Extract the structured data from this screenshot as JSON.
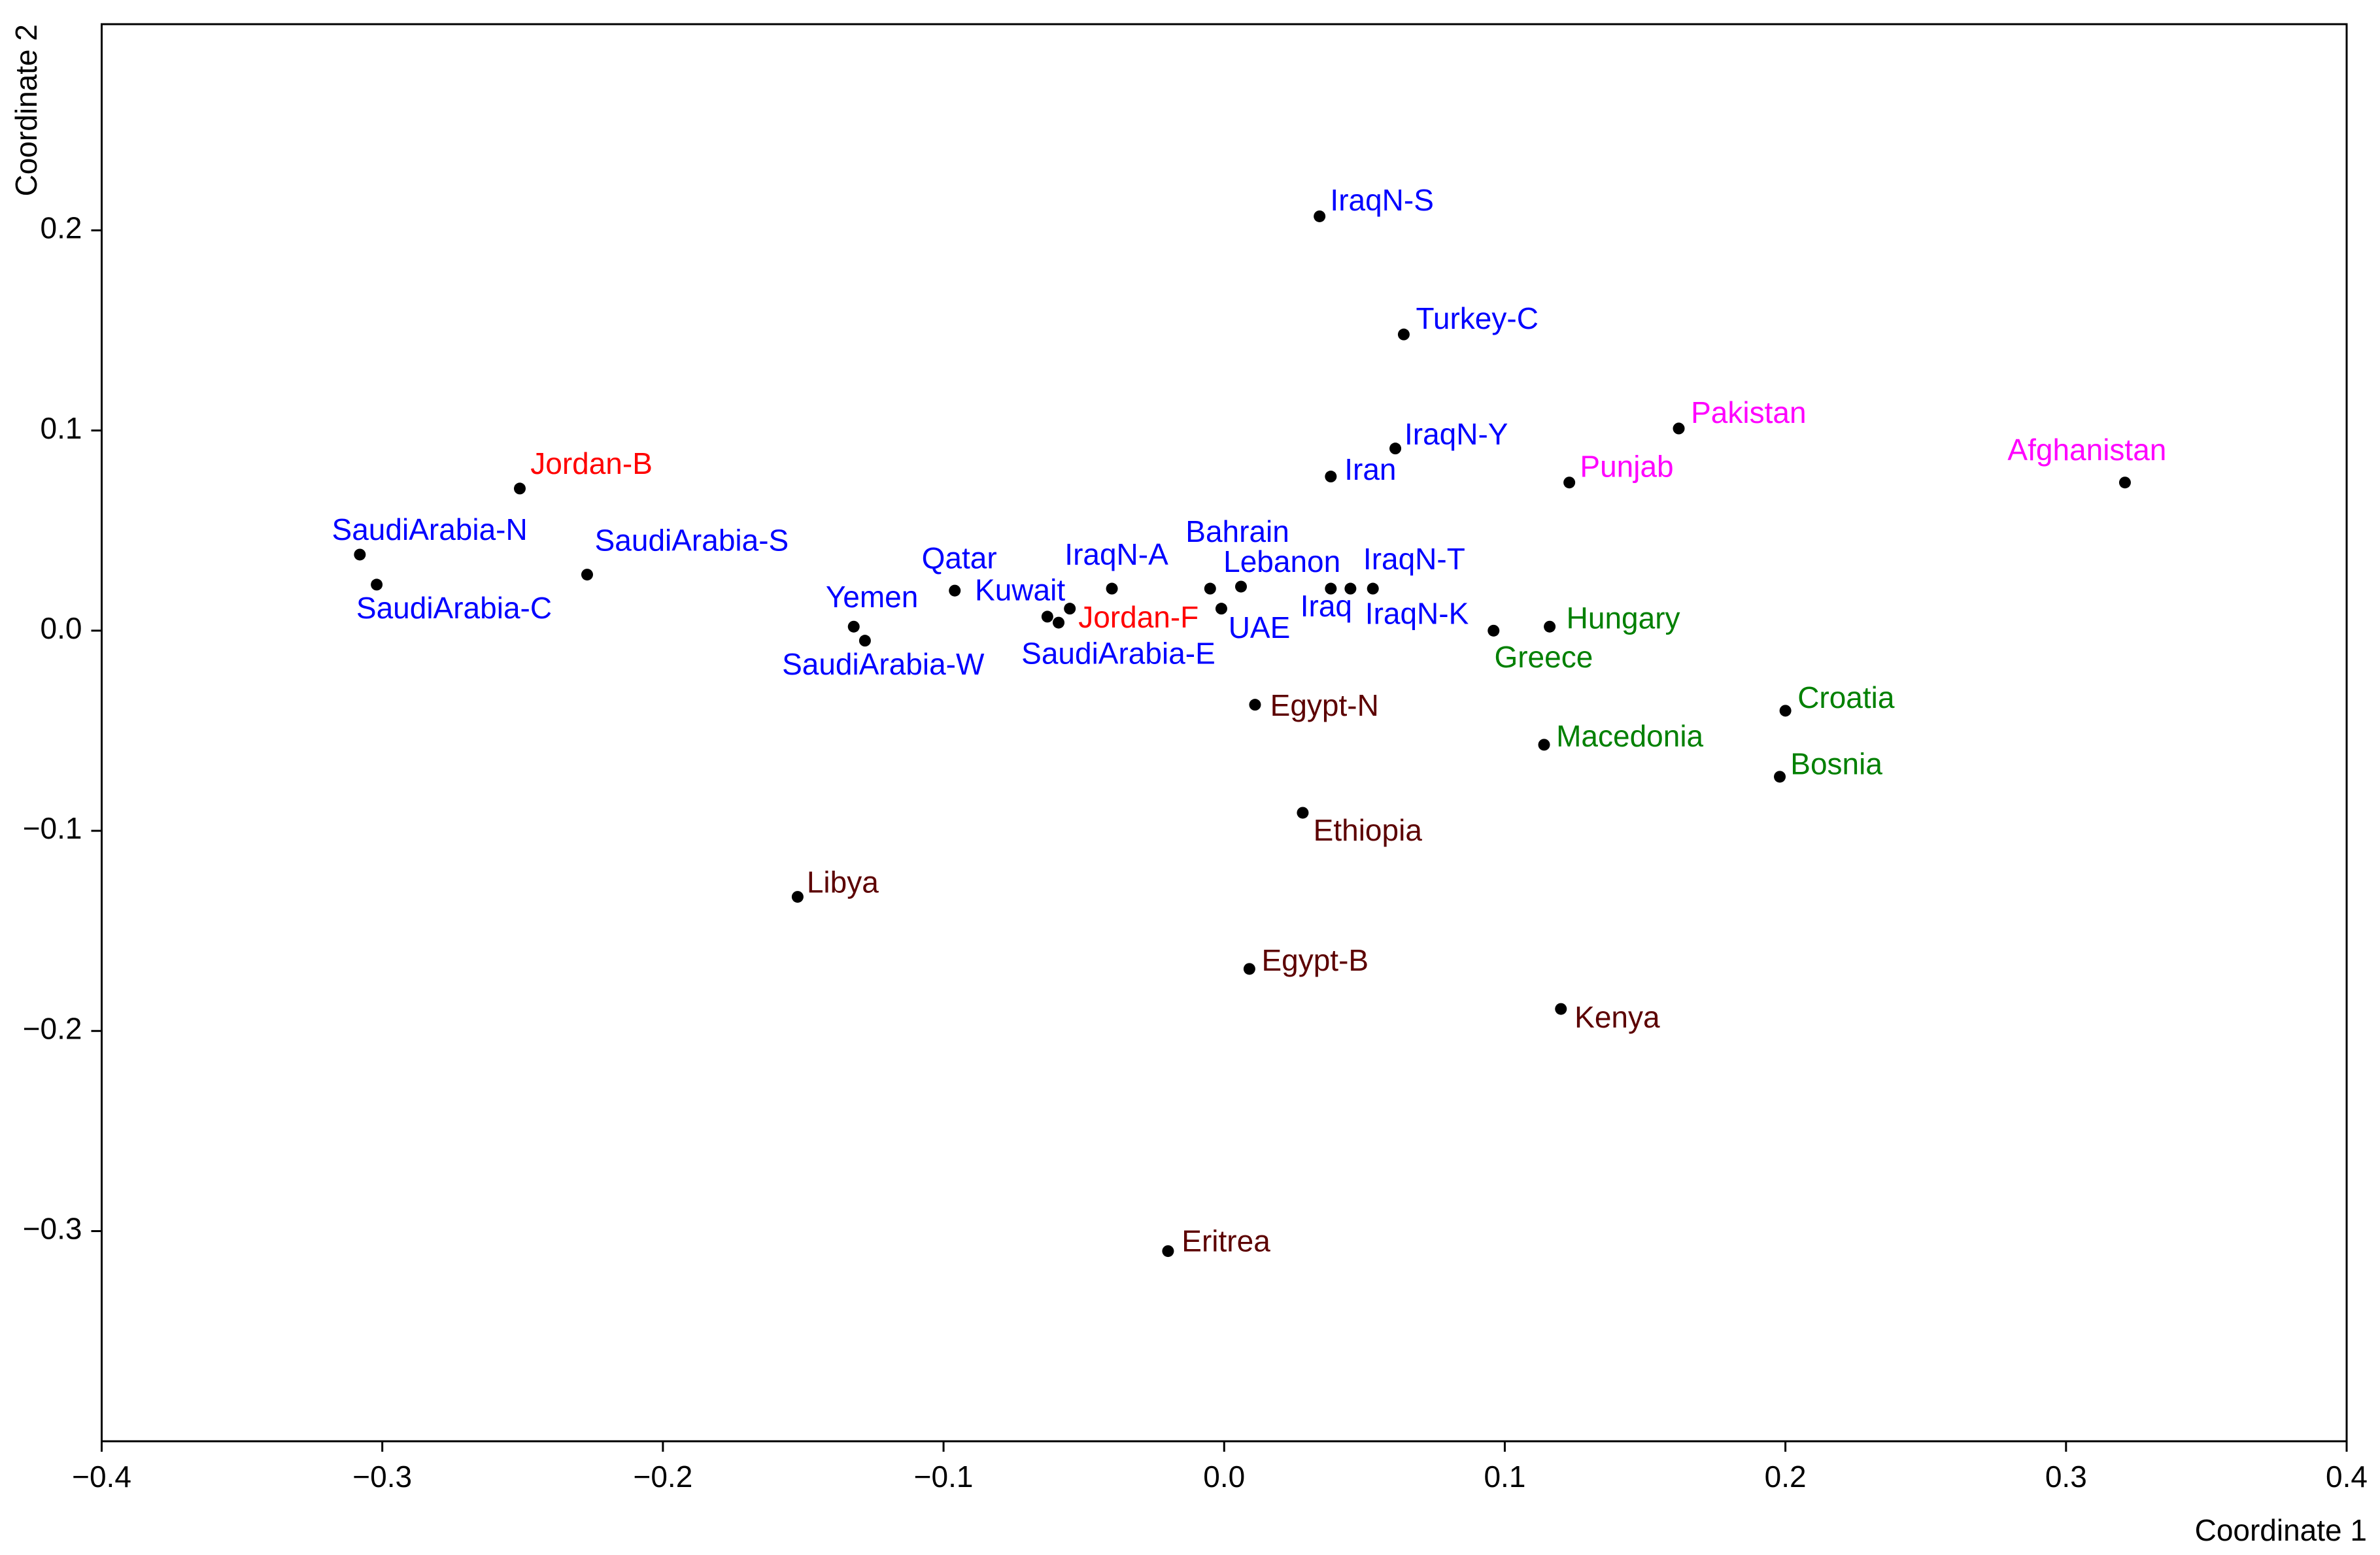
{
  "chart_data": {
    "type": "scatter",
    "x_label": "Coordinate 1",
    "y_label": "Coordinate 2",
    "xlim": [
      -0.4,
      0.4
    ],
    "ylim": [
      -0.405,
      0.303
    ],
    "xticks": [
      {
        "value": -0.4,
        "label": "−0.4"
      },
      {
        "value": -0.3,
        "label": "−0.3"
      },
      {
        "value": -0.2,
        "label": "−0.2"
      },
      {
        "value": -0.1,
        "label": "−0.1"
      },
      {
        "value": 0,
        "label": "0.0"
      },
      0.1,
      0.2,
      0.3,
      0.4
    ],
    "yticks": [
      {
        "value": -0.3,
        "label": "−0.3"
      },
      {
        "value": -0.2,
        "label": "−0.2"
      },
      {
        "value": -0.1,
        "label": "−0.1"
      },
      {
        "value": 0,
        "label": "0.0"
      },
      0.1,
      0.2
    ],
    "grid": false,
    "points": [
      {
        "label": "IraqN-S",
        "x": 0.034,
        "y": 0.207,
        "color": "#0000ff"
      },
      {
        "label": "Turkey-C",
        "x": 0.064,
        "y": 0.148,
        "color": "#0000ff"
      },
      {
        "label": "IraqN-Y",
        "x": 0.061,
        "y": 0.091,
        "color": "#0000ff"
      },
      {
        "label": "Iran",
        "x": 0.038,
        "y": 0.077,
        "color": "#0000ff"
      },
      {
        "label": "Pakistan",
        "x": 0.162,
        "y": 0.101,
        "color": "#ff00ff"
      },
      {
        "label": "Punjab",
        "x": 0.123,
        "y": 0.074,
        "color": "#ff00ff"
      },
      {
        "label": "Afghanistan",
        "x": 0.321,
        "y": 0.074,
        "color": "#ff00ff"
      },
      {
        "label": "Jordan-B",
        "x": -0.251,
        "y": 0.071,
        "color": "#ff0000"
      },
      {
        "label": "SaudiArabia-N",
        "x": -0.308,
        "y": 0.038,
        "color": "#0000ff"
      },
      {
        "label": "SaudiArabia-C",
        "x": -0.302,
        "y": 0.023,
        "color": "#0000ff"
      },
      {
        "label": "SaudiArabia-S",
        "x": -0.227,
        "y": 0.028,
        "color": "#0000ff"
      },
      {
        "label": "Qatar",
        "x": -0.096,
        "y": 0.02,
        "color": "#0000ff"
      },
      {
        "label": "Yemen",
        "x": -0.132,
        "y": 0.002,
        "color": "#0000ff"
      },
      {
        "label": "SaudiArabia-W",
        "x": -0.128,
        "y": -0.005,
        "color": "#0000ff"
      },
      {
        "label": "Kuwait",
        "x": -0.063,
        "y": 0.007,
        "color": "#0000ff"
      },
      {
        "label": "Jordan-F",
        "x": -0.059,
        "y": 0.004,
        "color": "#ff0000"
      },
      {
        "label": "SaudiArabia-E",
        "x": -0.055,
        "y": 0.011,
        "color": "#0000ff"
      },
      {
        "label": "IraqN-A",
        "x": -0.04,
        "y": 0.021,
        "color": "#0000ff"
      },
      {
        "label": "Bahrain",
        "x": -0.005,
        "y": 0.021,
        "color": "#0000ff"
      },
      {
        "label": "Lebanon",
        "x": 0.006,
        "y": 0.022,
        "color": "#0000ff"
      },
      {
        "label": "UAE",
        "x": -0.001,
        "y": 0.011,
        "color": "#0000ff"
      },
      {
        "label": "Iraq",
        "x": 0.038,
        "y": 0.021,
        "color": "#0000ff"
      },
      {
        "label": "IraqN-T",
        "x": 0.045,
        "y": 0.021,
        "color": "#0000ff"
      },
      {
        "label": "IraqN-K",
        "x": 0.053,
        "y": 0.021,
        "color": "#0000ff"
      },
      {
        "label": "Greece",
        "x": 0.096,
        "y": 0.0,
        "color": "#008000"
      },
      {
        "label": "Hungary",
        "x": 0.116,
        "y": 0.002,
        "color": "#008000"
      },
      {
        "label": "Croatia",
        "x": 0.2,
        "y": -0.04,
        "color": "#008000"
      },
      {
        "label": "Macedonia",
        "x": 0.114,
        "y": -0.057,
        "color": "#008000"
      },
      {
        "label": "Bosnia",
        "x": 0.198,
        "y": -0.073,
        "color": "#008000"
      },
      {
        "label": "Egypt-N",
        "x": 0.011,
        "y": -0.037,
        "color": "#5c0000"
      },
      {
        "label": "Ethiopia",
        "x": 0.028,
        "y": -0.091,
        "color": "#5c0000"
      },
      {
        "label": "Libya",
        "x": -0.152,
        "y": -0.133,
        "color": "#5c0000"
      },
      {
        "label": "Egypt-B",
        "x": 0.009,
        "y": -0.169,
        "color": "#5c0000"
      },
      {
        "label": "Kenya",
        "x": 0.12,
        "y": -0.189,
        "color": "#5c0000"
      },
      {
        "label": "Eritrea",
        "x": -0.02,
        "y": -0.31,
        "color": "#5c0000"
      }
    ]
  }
}
